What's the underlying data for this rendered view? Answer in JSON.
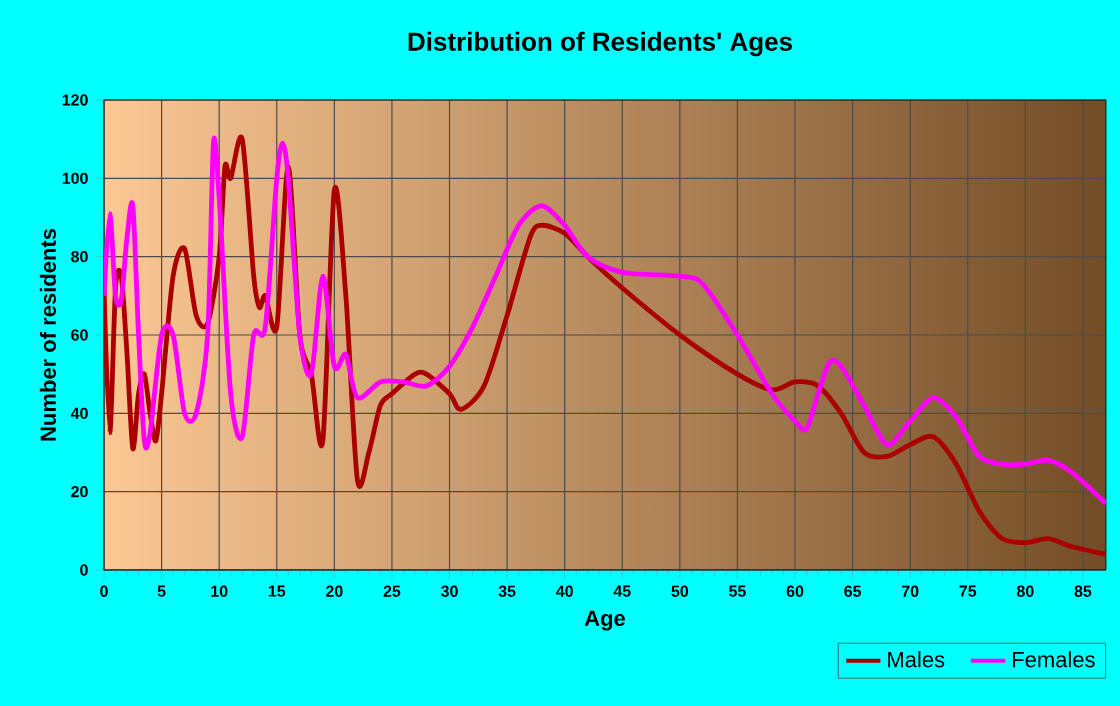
{
  "chart_data": {
    "type": "line",
    "title": "Distribution of Residents' Ages",
    "xlabel": "Age",
    "ylabel": "Number of residents",
    "xlim": [
      0,
      87
    ],
    "xticks": [
      0,
      5,
      10,
      15,
      20,
      25,
      30,
      35,
      40,
      45,
      50,
      55,
      60,
      65,
      70,
      75,
      80,
      85
    ],
    "ylim": [
      0,
      120
    ],
    "yticks": [
      0,
      20,
      40,
      60,
      80,
      100,
      120
    ],
    "grid": true,
    "legend": "bottom right",
    "marker": "none",
    "line_style": "solid",
    "series": [
      {
        "name": "Males",
        "color": "#aa0000",
        "x": [
          0,
          0.5,
          1,
          1.5,
          2,
          2.5,
          3,
          3.5,
          4,
          4.5,
          5,
          6,
          7,
          8,
          9,
          10,
          10.5,
          11,
          12,
          13,
          13.5,
          14,
          15,
          16,
          17,
          18,
          19,
          20,
          21,
          22,
          23,
          24,
          25,
          27,
          28,
          30,
          31,
          33,
          35,
          37,
          38,
          40,
          42,
          45,
          50,
          55,
          58,
          60,
          62,
          64,
          66,
          68,
          70,
          72,
          74,
          76,
          78,
          80,
          82,
          84,
          87
        ],
        "values": [
          72,
          35,
          72,
          75,
          55,
          31,
          45,
          50,
          40,
          33,
          45,
          75,
          82,
          65,
          63,
          80,
          103,
          100,
          110,
          75,
          67,
          70,
          62,
          103,
          60,
          50,
          33,
          97,
          70,
          23,
          30,
          42,
          45,
          50,
          50,
          45,
          41,
          47,
          65,
          85,
          88,
          86,
          80,
          72,
          60,
          50,
          46,
          48,
          47,
          40,
          30,
          29,
          32,
          34,
          27,
          15,
          8,
          7,
          8,
          6,
          4
        ]
      },
      {
        "name": "Females",
        "color": "#ff00ff",
        "x": [
          0,
          0.5,
          1,
          1.5,
          2,
          2.5,
          3,
          3.5,
          4,
          5,
          6,
          7,
          8,
          9,
          9.5,
          10,
          11,
          12,
          13,
          14,
          15,
          15.5,
          16,
          17,
          18,
          19,
          20,
          21,
          22,
          24,
          26,
          28,
          30,
          32,
          34,
          36,
          38,
          40,
          42,
          45,
          50,
          52,
          55,
          58,
          60,
          61,
          62,
          63,
          64,
          66,
          68,
          70,
          72,
          74,
          76,
          78,
          80,
          82,
          84,
          87
        ],
        "values": [
          70,
          91,
          70,
          69,
          85,
          93,
          60,
          33,
          35,
          60,
          60,
          40,
          40,
          60,
          109,
          95,
          45,
          34,
          60,
          62,
          100,
          109,
          100,
          60,
          50,
          75,
          52,
          55,
          44,
          48,
          48,
          47,
          52,
          62,
          75,
          88,
          93,
          88,
          80,
          76,
          75,
          73,
          60,
          45,
          38,
          36,
          45,
          53,
          52,
          42,
          32,
          38,
          44,
          39,
          29,
          27,
          27,
          28,
          25,
          17
        ]
      }
    ]
  }
}
